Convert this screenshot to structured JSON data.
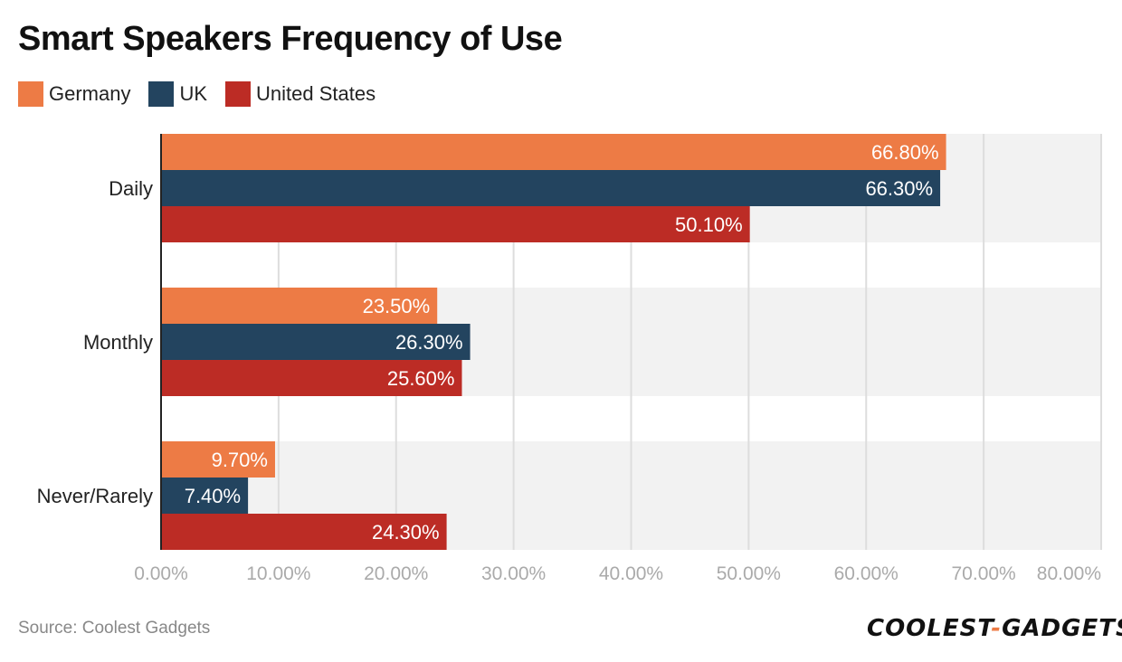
{
  "title": "Smart Speakers Frequency of Use",
  "source": "Source: Coolest Gadgets",
  "brand": {
    "left": "COOLEST",
    "dash": "-",
    "right": "GADGETS"
  },
  "colors": {
    "germany": "#ed7b45",
    "uk": "#23445f",
    "us": "#bc2c25",
    "band": "#f2f2f2",
    "grid": "#dddddd",
    "tick": "#aaaaaa"
  },
  "chart_data": {
    "type": "bar",
    "orientation": "horizontal",
    "categories": [
      "Daily",
      "Monthly",
      "Never/Rarely"
    ],
    "series": [
      {
        "name": "Germany",
        "color": "#ed7b45",
        "values": [
          66.8,
          23.5,
          9.7
        ],
        "labels": [
          "66.80%",
          "23.50%",
          "9.70%"
        ]
      },
      {
        "name": "UK",
        "color": "#23445f",
        "values": [
          66.3,
          26.3,
          7.4
        ],
        "labels": [
          "66.30%",
          "26.30%",
          "7.40%"
        ]
      },
      {
        "name": "United States",
        "color": "#bc2c25",
        "values": [
          50.1,
          25.6,
          24.3
        ],
        "labels": [
          "50.10%",
          "25.60%",
          "24.30%"
        ]
      }
    ],
    "xlim": [
      0,
      80
    ],
    "xticks": [
      0,
      10,
      20,
      30,
      40,
      50,
      60,
      70,
      80
    ],
    "xtick_labels": [
      "0.00%",
      "10.00%",
      "20.00%",
      "30.00%",
      "40.00%",
      "50.00%",
      "60.00%",
      "70.00%",
      "80.00%"
    ],
    "grid": true,
    "legend_position": "top-left"
  }
}
